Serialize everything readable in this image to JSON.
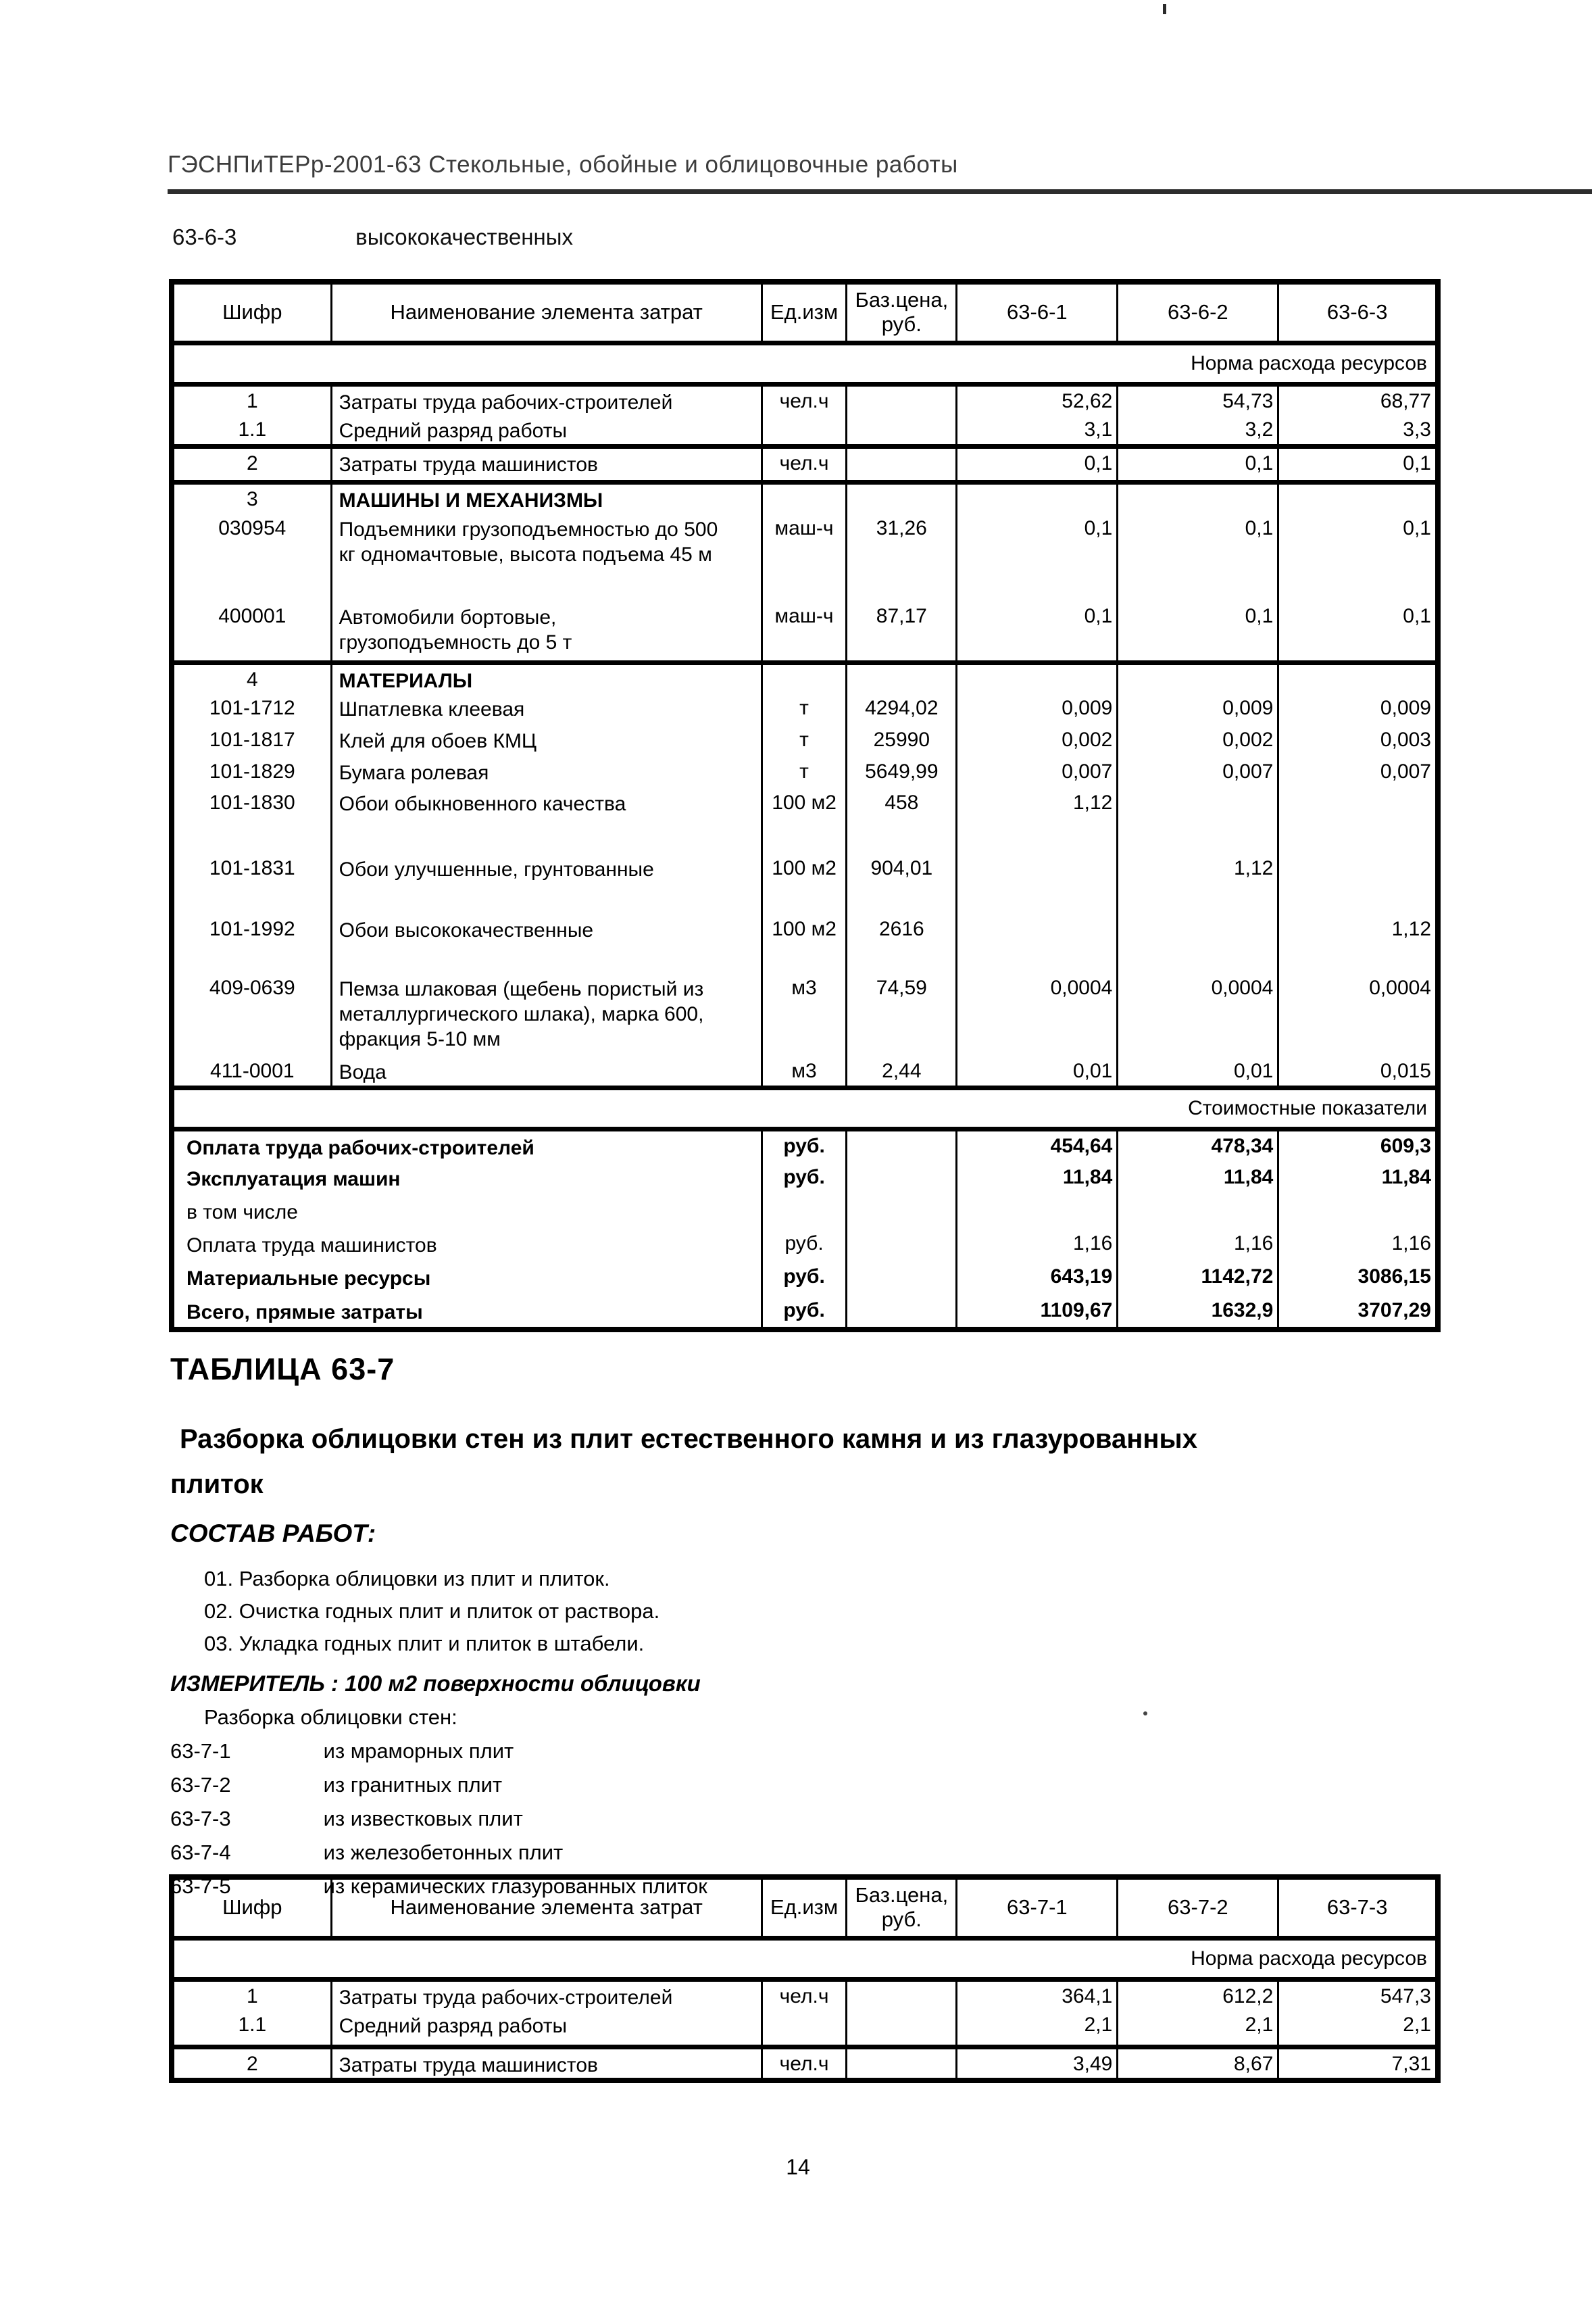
{
  "page": {
    "header": "ГЭСНПиТЕРр-2001-63 Стекольные, обойные и облицовочные работы",
    "section_code": "63-6-3",
    "section_name": "высококачественных",
    "page_number": "14"
  },
  "table1": {
    "columns": [
      "Шифр",
      "Наименование элемента затрат",
      "Ед.изм",
      "Баз.цена,\nруб.",
      "63-6-1",
      "63-6-2",
      "63-6-3"
    ],
    "norm_banner": "Норма расхода ресурсов",
    "rows": [
      {
        "cells": [
          "1",
          "Затраты труда рабочих-строителей",
          "чел.ч",
          "",
          "52,62",
          "54,73",
          "68,77"
        ],
        "h": 46
      },
      {
        "cells": [
          "1.1",
          "Средний разряд работы",
          "",
          "",
          "3,1",
          "3,2",
          "3,3"
        ],
        "h": 46,
        "sep": true
      },
      {
        "cells": [
          "2",
          "Затраты труда машинистов",
          "чел.ч",
          "",
          "0,1",
          "0,1",
          "0,1"
        ],
        "h": 53,
        "sep": true
      },
      {
        "cells": [
          "3",
          "МАШИНЫ И МЕХАНИЗМЫ",
          "",
          "",
          "",
          "",
          ""
        ],
        "h": 47,
        "header": true
      },
      {
        "cells": [
          "030954",
          "Подъемники грузоподъемностью до 500\nкг одномачтовые, высота подъема 45 м",
          "маш-ч",
          "31,26",
          "0,1",
          "0,1",
          "0,1"
        ],
        "h": 130
      },
      {
        "cells": [
          "400001",
          "Автомобили бортовые,\nгрузоподъемность до 5 т",
          "маш-ч",
          "87,17",
          "0,1",
          "0,1",
          "0,1"
        ],
        "h": 90,
        "sep": true
      },
      {
        "cells": [
          "4",
          "МАТЕРИАЛЫ",
          "",
          "",
          "",
          "",
          ""
        ],
        "h": 43,
        "header": true
      },
      {
        "cells": [
          "101-1712",
          "Шпатлевка клеевая",
          "т",
          "4294,02",
          "0,009",
          "0,009",
          "0,009"
        ],
        "h": 47
      },
      {
        "cells": [
          "101-1817",
          "Клей для обоев КМЦ",
          "т",
          "25990",
          "0,002",
          "0,002",
          "0,003"
        ],
        "h": 47
      },
      {
        "cells": [
          "101-1829",
          "Бумага ролевая",
          "т",
          "5649,99",
          "0,007",
          "0,007",
          "0,007"
        ],
        "h": 46
      },
      {
        "cells": [
          "101-1830",
          "Обои обыкновенного качества",
          "100 м2",
          "458",
          "1,12",
          "",
          ""
        ],
        "h": 97
      },
      {
        "cells": [
          "101-1831",
          "Обои улучшенные, грунтованные",
          "100 м2",
          "904,01",
          "",
          "1,12",
          ""
        ],
        "h": 90
      },
      {
        "cells": [
          "101-1992",
          "Обои высококачественные",
          "100 м2",
          "2616",
          "",
          "",
          "1,12"
        ],
        "h": 87
      },
      {
        "cells": [
          "409-0639",
          "Пемза шлаковая (щебень пористый из\nметаллургического шлака), марка 600,\nфракция 5-10 мм",
          "м3",
          "74,59",
          "0,0004",
          "0,0004",
          "0,0004"
        ],
        "h": 123
      },
      {
        "cells": [
          "411-0001",
          "Вода",
          "м3",
          "2,44",
          "0,01",
          "0,01",
          "0,015"
        ],
        "h": 47,
        "sep": true
      }
    ],
    "cost_banner": "Стоимостные показатели",
    "cost_rows": [
      {
        "cells": [
          "Оплата труда рабочих-строителей",
          "руб.",
          "",
          "454,64",
          "478,34",
          "609,3"
        ],
        "h": 49,
        "strong": true
      },
      {
        "cells": [
          "Эксплуатация машин",
          "руб.",
          "",
          "11,84",
          "11,84",
          "11,84"
        ],
        "h": 49,
        "strong": true
      },
      {
        "cells": [
          "в том числе",
          "",
          "",
          "",
          "",
          ""
        ],
        "h": 49
      },
      {
        "cells": [
          "Оплата труда машинистов",
          "руб.",
          "",
          "1,16",
          "1,16",
          "1,16"
        ],
        "h": 49
      },
      {
        "cells": [
          "Материальные ресурсы",
          "руб.",
          "",
          "643,19",
          "1142,72",
          "3086,15"
        ],
        "h": 50,
        "strong": true
      },
      {
        "cells": [
          "Всего, прямые затраты",
          "руб.",
          "",
          "1109,67",
          "1632,9",
          "3707,29"
        ],
        "h": 50,
        "strong": true
      }
    ]
  },
  "section637": {
    "title": "ТАБЛИЦА 63-7",
    "subtitle": "Разборка облицовки стен из плит естественного камня и из глазурованных\nплиток",
    "works_label": "СОСТАВ РАБОТ:",
    "works": [
      "01. Разборка облицовки из плит и плиток.",
      "02. Очистка годных плит и плиток от раствора.",
      "03. Укладка годных плит и плиток в штабели."
    ],
    "measure": "ИЗМЕРИТЕЛЬ : 100 м2 поверхности облицовки",
    "list_intro": "Разборка облицовки стен:",
    "variants": [
      {
        "code": "63-7-1",
        "name": "из мраморных плит"
      },
      {
        "code": "63-7-2",
        "name": "из гранитных плит"
      },
      {
        "code": "63-7-3",
        "name": "из известковых плит"
      },
      {
        "code": "63-7-4",
        "name": "из железобетонных плит"
      },
      {
        "code": "63-7-5",
        "name": "из керамических глазурованных плиток"
      }
    ]
  },
  "table2": {
    "columns": [
      "Шифр",
      "Наименование элемента затрат",
      "Ед.изм",
      "Баз.цена,\nруб.",
      "63-7-1",
      "63-7-2",
      "63-7-3"
    ],
    "norm_banner": "Норма расхода ресурсов",
    "rows": [
      {
        "cells": [
          "1",
          "Затраты труда рабочих-строителей",
          "чел.ч",
          "",
          "364,1",
          "612,2",
          "547,3"
        ],
        "h": 46
      },
      {
        "cells": [
          "1.1",
          "Средний разряд работы",
          "",
          "",
          "2,1",
          "2,1",
          "2,1"
        ],
        "h": 54,
        "sep": true
      },
      {
        "cells": [
          "2",
          "Затраты труда машинистов",
          "чел.ч",
          "",
          "3,49",
          "8,67",
          "7,31"
        ],
        "h": 50,
        "sep": true
      }
    ]
  }
}
